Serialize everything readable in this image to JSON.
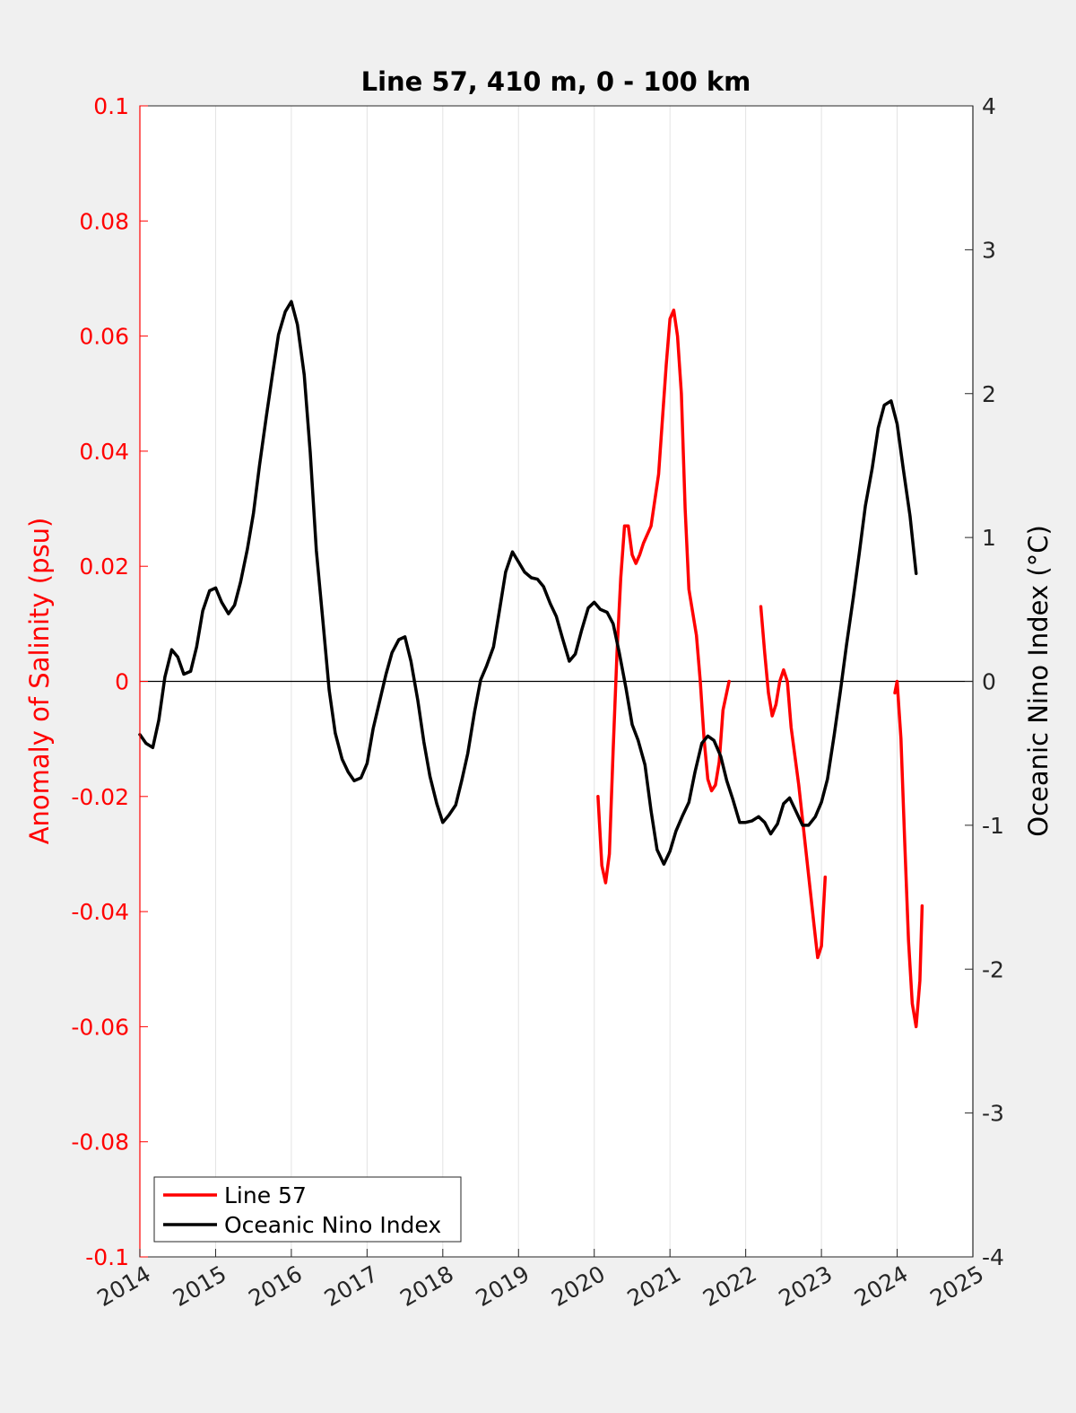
{
  "chart_data": {
    "type": "line",
    "title": "Line 57, 410 m, 0 - 100 km",
    "xlabel": "",
    "ylabel": "Anomaly of Salinity (psu)",
    "y2label": "Oceanic Nino Index (°C)",
    "xlim": [
      2014,
      2025
    ],
    "ylim": [
      -0.1,
      0.1
    ],
    "y2lim": [
      -4,
      4
    ],
    "grid": "vertical",
    "legend_position": "bottom-left",
    "x_ticks": [
      "2014",
      "2015",
      "2016",
      "2017",
      "2018",
      "2019",
      "2020",
      "2021",
      "2022",
      "2023",
      "2024",
      "2025"
    ],
    "y_ticks": [
      "0.1",
      "0.08",
      "0.06",
      "0.04",
      "0.02",
      "0",
      "-0.02",
      "-0.04",
      "-0.06",
      "-0.08",
      "-0.1"
    ],
    "y2_ticks": [
      "4",
      "3",
      "2",
      "1",
      "0",
      "-1",
      "-2",
      "-3",
      "-4"
    ],
    "colors": {
      "salinity": "#ff0000",
      "oni": "#000000",
      "left_axis": "#ff0000",
      "right_axis": "#000000"
    },
    "series": [
      {
        "name": "Line 57",
        "axis": "left",
        "color": "#ff0000",
        "segments": [
          [
            [
              2020.05,
              -0.02
            ],
            [
              2020.1,
              -0.032
            ],
            [
              2020.15,
              -0.035
            ],
            [
              2020.2,
              -0.03
            ],
            [
              2020.25,
              -0.012
            ],
            [
              2020.3,
              0.005
            ],
            [
              2020.35,
              0.018
            ],
            [
              2020.4,
              0.027
            ],
            [
              2020.45,
              0.027
            ],
            [
              2020.5,
              0.022
            ],
            [
              2020.55,
              0.0205
            ],
            [
              2020.6,
              0.022
            ],
            [
              2020.65,
              0.024
            ],
            [
              2020.75,
              0.027
            ],
            [
              2020.85,
              0.036
            ],
            [
              2020.95,
              0.055
            ],
            [
              2021.0,
              0.063
            ],
            [
              2021.05,
              0.0645
            ],
            [
              2021.1,
              0.06
            ],
            [
              2021.15,
              0.05
            ],
            [
              2021.2,
              0.03
            ],
            [
              2021.25,
              0.016
            ],
            [
              2021.35,
              0.008
            ],
            [
              2021.4,
              0.0
            ],
            [
              2021.45,
              -0.01
            ],
            [
              2021.5,
              -0.017
            ],
            [
              2021.55,
              -0.019
            ],
            [
              2021.6,
              -0.018
            ],
            [
              2021.65,
              -0.014
            ],
            [
              2021.7,
              -0.005
            ],
            [
              2021.78,
              0.0
            ]
          ],
          [
            [
              2022.2,
              0.013
            ],
            [
              2022.25,
              0.005
            ],
            [
              2022.3,
              -0.002
            ],
            [
              2022.35,
              -0.006
            ],
            [
              2022.4,
              -0.004
            ],
            [
              2022.45,
              0.0
            ],
            [
              2022.5,
              0.002
            ],
            [
              2022.55,
              0.0
            ],
            [
              2022.6,
              -0.008
            ],
            [
              2022.7,
              -0.018
            ],
            [
              2022.8,
              -0.03
            ],
            [
              2022.9,
              -0.042
            ],
            [
              2022.95,
              -0.048
            ],
            [
              2023.0,
              -0.046
            ],
            [
              2023.05,
              -0.034
            ]
          ],
          [
            [
              2023.97,
              -0.002
            ],
            [
              2024.0,
              0.0
            ],
            [
              2024.05,
              -0.01
            ],
            [
              2024.1,
              -0.028
            ],
            [
              2024.15,
              -0.045
            ],
            [
              2024.2,
              -0.056
            ],
            [
              2024.25,
              -0.06
            ],
            [
              2024.3,
              -0.052
            ],
            [
              2024.33,
              -0.039
            ]
          ]
        ]
      },
      {
        "name": "Oceanic Nino Index",
        "axis": "right",
        "color": "#000000",
        "segments": [
          [
            [
              2014.0,
              -0.37
            ],
            [
              2014.08,
              -0.43
            ],
            [
              2014.17,
              -0.46
            ],
            [
              2014.25,
              -0.27
            ],
            [
              2014.33,
              0.03
            ],
            [
              2014.42,
              0.22
            ],
            [
              2014.5,
              0.17
            ],
            [
              2014.58,
              0.05
            ],
            [
              2014.67,
              0.07
            ],
            [
              2014.75,
              0.24
            ],
            [
              2014.83,
              0.49
            ],
            [
              2014.92,
              0.63
            ],
            [
              2015.0,
              0.65
            ],
            [
              2015.08,
              0.55
            ],
            [
              2015.17,
              0.47
            ],
            [
              2015.25,
              0.53
            ],
            [
              2015.33,
              0.69
            ],
            [
              2015.42,
              0.92
            ],
            [
              2015.5,
              1.17
            ],
            [
              2015.58,
              1.5
            ],
            [
              2015.67,
              1.84
            ],
            [
              2015.75,
              2.13
            ],
            [
              2015.83,
              2.41
            ],
            [
              2015.92,
              2.57
            ],
            [
              2016.0,
              2.64
            ],
            [
              2016.08,
              2.48
            ],
            [
              2016.17,
              2.13
            ],
            [
              2016.25,
              1.59
            ],
            [
              2016.33,
              0.91
            ],
            [
              2016.42,
              0.4
            ],
            [
              2016.5,
              -0.06
            ],
            [
              2016.58,
              -0.36
            ],
            [
              2016.67,
              -0.54
            ],
            [
              2016.75,
              -0.63
            ],
            [
              2016.83,
              -0.69
            ],
            [
              2016.92,
              -0.67
            ],
            [
              2017.0,
              -0.57
            ],
            [
              2017.08,
              -0.33
            ],
            [
              2017.17,
              -0.13
            ],
            [
              2017.25,
              0.05
            ],
            [
              2017.33,
              0.2
            ],
            [
              2017.42,
              0.29
            ],
            [
              2017.5,
              0.31
            ],
            [
              2017.58,
              0.14
            ],
            [
              2017.67,
              -0.13
            ],
            [
              2017.75,
              -0.42
            ],
            [
              2017.83,
              -0.66
            ],
            [
              2017.92,
              -0.85
            ],
            [
              2018.0,
              -0.98
            ],
            [
              2018.08,
              -0.93
            ],
            [
              2018.17,
              -0.86
            ],
            [
              2018.25,
              -0.69
            ],
            [
              2018.33,
              -0.5
            ],
            [
              2018.42,
              -0.21
            ],
            [
              2018.5,
              0.01
            ],
            [
              2018.58,
              0.11
            ],
            [
              2018.67,
              0.24
            ],
            [
              2018.75,
              0.5
            ],
            [
              2018.83,
              0.76
            ],
            [
              2018.92,
              0.9
            ],
            [
              2019.0,
              0.83
            ],
            [
              2019.08,
              0.76
            ],
            [
              2019.17,
              0.72
            ],
            [
              2019.25,
              0.71
            ],
            [
              2019.33,
              0.66
            ],
            [
              2019.42,
              0.54
            ],
            [
              2019.5,
              0.45
            ],
            [
              2019.58,
              0.3
            ],
            [
              2019.67,
              0.14
            ],
            [
              2019.75,
              0.19
            ],
            [
              2019.83,
              0.35
            ],
            [
              2019.92,
              0.51
            ],
            [
              2020.0,
              0.55
            ],
            [
              2020.08,
              0.5
            ],
            [
              2020.17,
              0.48
            ],
            [
              2020.25,
              0.4
            ],
            [
              2020.33,
              0.2
            ],
            [
              2020.42,
              -0.05
            ],
            [
              2020.5,
              -0.3
            ],
            [
              2020.58,
              -0.41
            ],
            [
              2020.67,
              -0.58
            ],
            [
              2020.75,
              -0.9
            ],
            [
              2020.83,
              -1.17
            ],
            [
              2020.92,
              -1.27
            ],
            [
              2021.0,
              -1.18
            ],
            [
              2021.08,
              -1.04
            ],
            [
              2021.17,
              -0.93
            ],
            [
              2021.25,
              -0.84
            ],
            [
              2021.33,
              -0.63
            ],
            [
              2021.42,
              -0.43
            ],
            [
              2021.5,
              -0.38
            ],
            [
              2021.58,
              -0.41
            ],
            [
              2021.67,
              -0.52
            ],
            [
              2021.75,
              -0.69
            ],
            [
              2021.83,
              -0.82
            ],
            [
              2021.92,
              -0.98
            ],
            [
              2022.0,
              -0.98
            ],
            [
              2022.08,
              -0.97
            ],
            [
              2022.17,
              -0.94
            ],
            [
              2022.25,
              -0.98
            ],
            [
              2022.33,
              -1.06
            ],
            [
              2022.42,
              -0.99
            ],
            [
              2022.5,
              -0.85
            ],
            [
              2022.58,
              -0.81
            ],
            [
              2022.67,
              -0.91
            ],
            [
              2022.75,
              -1.0
            ],
            [
              2022.83,
              -1.0
            ],
            [
              2022.92,
              -0.94
            ],
            [
              2023.0,
              -0.84
            ],
            [
              2023.08,
              -0.68
            ],
            [
              2023.17,
              -0.37
            ],
            [
              2023.25,
              -0.07
            ],
            [
              2023.33,
              0.25
            ],
            [
              2023.42,
              0.58
            ],
            [
              2023.5,
              0.89
            ],
            [
              2023.58,
              1.22
            ],
            [
              2023.67,
              1.48
            ],
            [
              2023.75,
              1.76
            ],
            [
              2023.83,
              1.92
            ],
            [
              2023.92,
              1.95
            ],
            [
              2024.0,
              1.79
            ],
            [
              2024.08,
              1.48
            ],
            [
              2024.17,
              1.15
            ],
            [
              2024.25,
              0.75
            ]
          ]
        ]
      }
    ]
  }
}
